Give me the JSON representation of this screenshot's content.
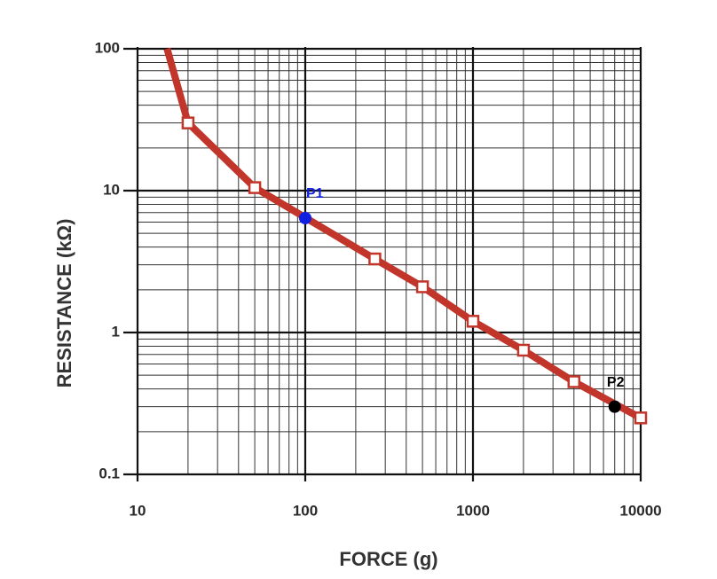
{
  "chart_data": {
    "type": "line",
    "x_label": "FORCE (g)",
    "y_label": "RESISTANCE (kΩ)",
    "log_x": true,
    "log_y": true,
    "grid": "major+minor",
    "xlim": [
      10,
      10000
    ],
    "ylim": [
      0.1,
      100
    ],
    "xticks": [
      10,
      100,
      1000,
      10000
    ],
    "yticks": [
      0.1,
      1,
      10,
      100
    ],
    "series": [
      {
        "color": "#c2352a",
        "x": [
          15,
          20,
          50,
          260,
          500,
          1000,
          2000,
          4000,
          10000
        ],
        "values": [
          100,
          30,
          10.5,
          3.3,
          2.1,
          1.2,
          0.75,
          0.45,
          0.25
        ]
      }
    ],
    "points": [
      {
        "name": "P1",
        "color": "#1020e0",
        "x": 100,
        "y": 6.4
      },
      {
        "name": "P2",
        "color": "#000000",
        "x": 7000,
        "y": 0.3
      }
    ]
  }
}
